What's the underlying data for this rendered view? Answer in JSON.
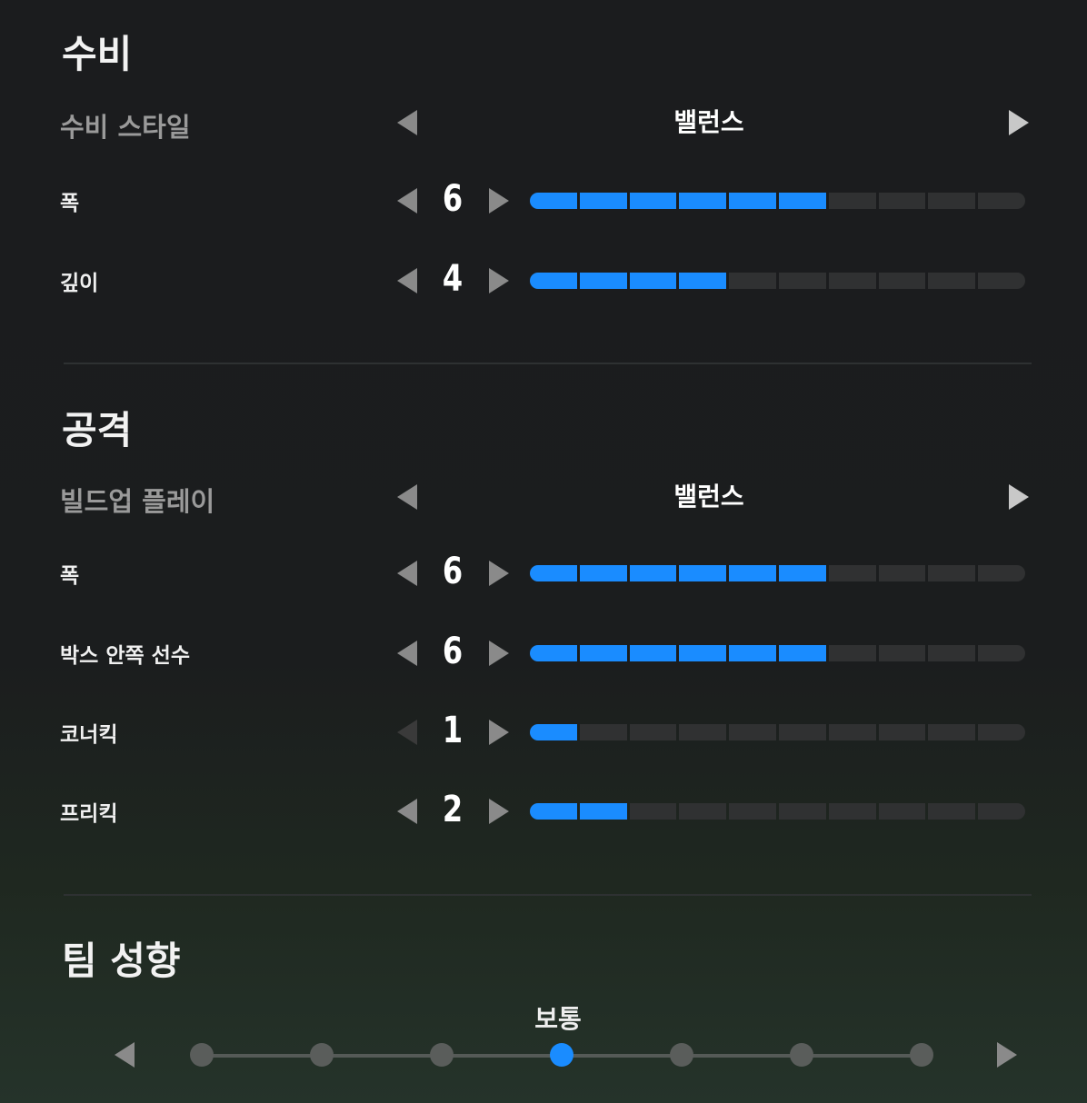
{
  "defense": {
    "title": "수비",
    "style": {
      "label": "수비 스타일",
      "value": "밸런스"
    },
    "sliders": [
      {
        "label": "폭",
        "value": 6,
        "max": 10
      },
      {
        "label": "깊이",
        "value": 4,
        "max": 10
      }
    ]
  },
  "attack": {
    "title": "공격",
    "style": {
      "label": "빌드업 플레이",
      "value": "밸런스"
    },
    "sliders": [
      {
        "label": "폭",
        "value": 6,
        "max": 10
      },
      {
        "label": "박스 안쪽 선수",
        "value": 6,
        "max": 10
      },
      {
        "label": "코너킥",
        "value": 1,
        "max": 10
      },
      {
        "label": "프리킥",
        "value": 2,
        "max": 10
      }
    ]
  },
  "team": {
    "title": "팀 성향",
    "value_label": "보통",
    "steps": 7,
    "selected_index": 3
  },
  "colors": {
    "accent": "#1a8cff",
    "inactive": "#303132"
  }
}
